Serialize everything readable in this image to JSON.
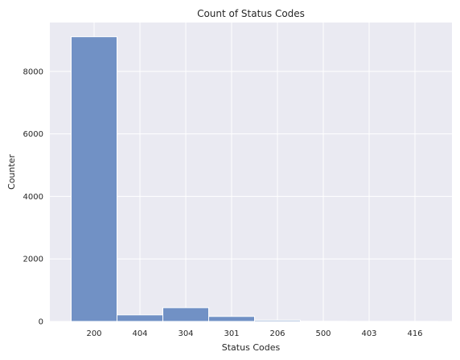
{
  "chart_data": {
    "type": "bar",
    "title": "Count of Status Codes",
    "xlabel": "Status Codes",
    "ylabel": "Counter",
    "categories": [
      "200",
      "404",
      "304",
      "301",
      "206",
      "500",
      "403",
      "416"
    ],
    "values": [
      9110,
      210,
      440,
      160,
      40,
      5,
      3,
      2
    ],
    "ylim": [
      0,
      9565
    ],
    "yticks": [
      0,
      2000,
      4000,
      6000,
      8000
    ],
    "grid": true,
    "colors": {
      "bar_fill": "#7191c5",
      "bar_stroke": "#ffffff",
      "plot_background": "#eaeaf2",
      "grid": "#ffffff"
    }
  }
}
